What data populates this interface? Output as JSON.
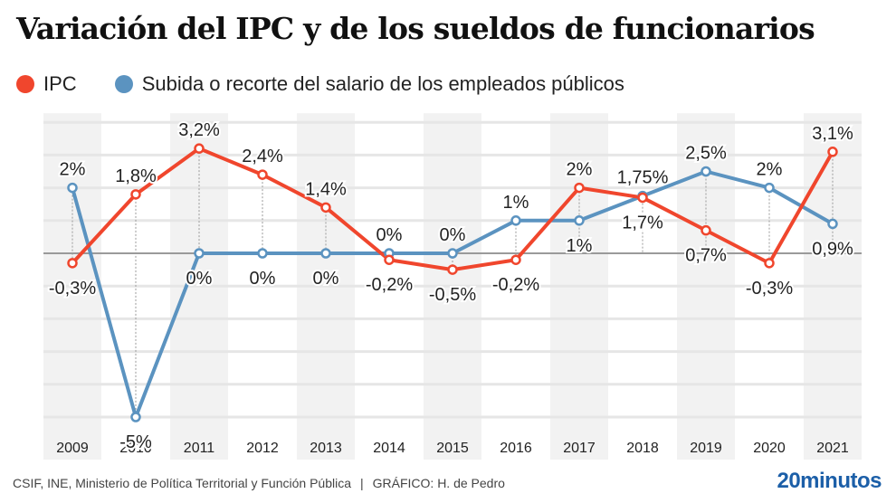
{
  "header": {
    "title": "Variación del IPC y de los sueldos de funcionarios"
  },
  "legend": [
    {
      "label": "IPC",
      "color": "#f0462d"
    },
    {
      "label": "Subida o recorte del salario de los empleados públicos",
      "color": "#5b93c0"
    }
  ],
  "footer": {
    "source": "CSIF, INE, Ministerio de Política Territorial y Función Pública",
    "separator": "|",
    "credit": "GRÁFICO: H. de Pedro",
    "brand": "20minutos"
  },
  "chart_data": {
    "type": "line",
    "title": "Variación del IPC y de los sueldos de funcionarios",
    "xlabel": "",
    "ylabel": "",
    "ylim": [
      -5,
      4
    ],
    "grid": true,
    "legend_position": "top-left",
    "categories": [
      "2009",
      "2010",
      "2011",
      "2012",
      "2013",
      "2014",
      "2015",
      "2016",
      "2017",
      "2018",
      "2019",
      "2020",
      "2021"
    ],
    "series": [
      {
        "name": "IPC",
        "color": "#f0462d",
        "values": [
          -0.3,
          1.8,
          3.2,
          2.4,
          1.4,
          -0.2,
          -0.5,
          -0.2,
          2,
          1.7,
          0.7,
          -0.3,
          3.1
        ],
        "labels": [
          "-0,3%",
          "1,8%",
          "3,2%",
          "2,4%",
          "1,4%",
          "-0,2%",
          "-0,5%",
          "-0,2%",
          "2%",
          "1,7%",
          "0,7%",
          "-0,3%",
          "3,1%"
        ]
      },
      {
        "name": "Subida o recorte del salario de los empleados públicos",
        "color": "#5b93c0",
        "values": [
          2,
          -5,
          0,
          0,
          0,
          0,
          0,
          1,
          1,
          1.75,
          2.5,
          2,
          0.9
        ],
        "labels": [
          "2%",
          "-5%",
          "0%",
          "0%",
          "0%",
          "0%",
          "0%",
          "1%",
          "1%",
          "1,75%",
          "2,5%",
          "2%",
          "0,9%"
        ]
      }
    ]
  }
}
